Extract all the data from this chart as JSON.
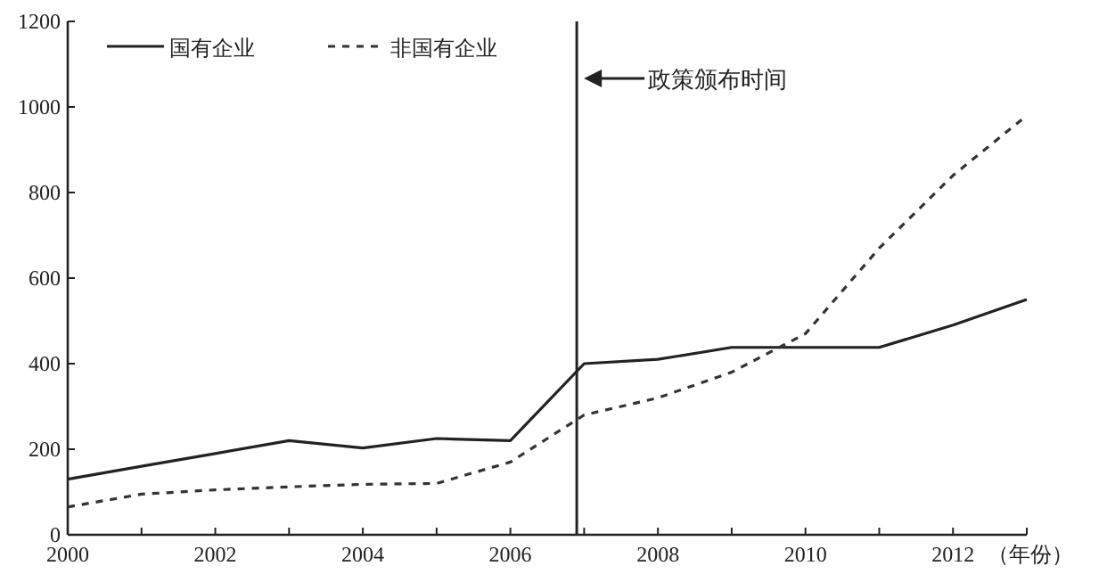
{
  "chart_data": {
    "type": "line",
    "xlabel": "（年份）",
    "x": [
      2000,
      2001,
      2002,
      2003,
      2004,
      2005,
      2006,
      2007,
      2008,
      2009,
      2010,
      2011,
      2012,
      2013
    ],
    "series": [
      {
        "name": "国有企业",
        "color": "#222222",
        "line_style": "solid",
        "values": [
          130,
          160,
          190,
          220,
          203,
          225,
          220,
          400,
          410,
          438,
          438,
          438,
          490,
          550
        ]
      },
      {
        "name": "非国有企业",
        "color": "#333333",
        "line_style": "dashed",
        "values": [
          65,
          95,
          105,
          112,
          118,
          120,
          170,
          280,
          320,
          380,
          470,
          670,
          840,
          980
        ]
      }
    ],
    "xlim": [
      2000,
      2013
    ],
    "ylim": [
      0,
      1200
    ],
    "xticks": [
      2000,
      {
        "value": 2001,
        "label": null
      },
      2002,
      {
        "value": 2003,
        "label": null
      },
      2004,
      {
        "value": 2005,
        "label": null
      },
      2006,
      {
        "value": 2007,
        "label": null
      },
      2008,
      {
        "value": 2009,
        "label": null
      },
      2010,
      {
        "value": 2011,
        "label": null
      },
      2012,
      {
        "value": 2013,
        "label": null
      }
    ],
    "yticks": [
      0,
      200,
      400,
      600,
      800,
      1000,
      1200
    ],
    "ref_lines": [
      {
        "axis": "x",
        "value": 2006.9,
        "label": "政策颁布时间",
        "color": "#222222"
      }
    ],
    "grid": false,
    "legend": "top left",
    "marker": "none"
  }
}
